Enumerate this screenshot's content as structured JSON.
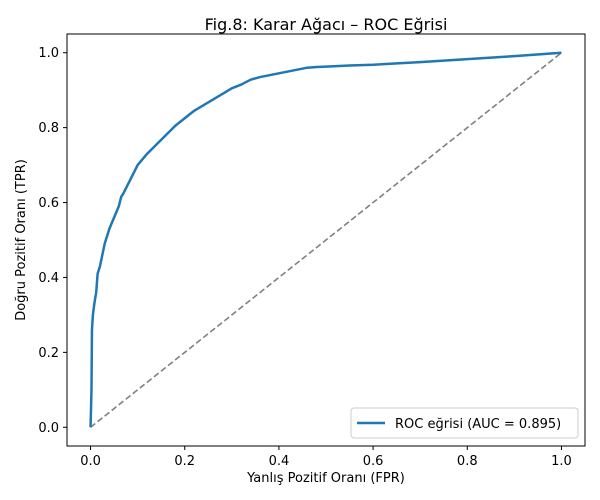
{
  "chart_data": {
    "type": "line",
    "title": "Fig.8: Karar Ağacı – ROC Eğrisi",
    "xlabel": "Yanlış Pozitif Oranı (FPR)",
    "ylabel": "Doğru Pozitif Oranı (TPR)",
    "xlim": [
      -0.05,
      1.05
    ],
    "ylim": [
      -0.05,
      1.05
    ],
    "x_ticks": [
      "0.0",
      "0.2",
      "0.4",
      "0.6",
      "0.8",
      "1.0"
    ],
    "y_ticks": [
      "0.0",
      "0.2",
      "0.4",
      "0.6",
      "0.8",
      "1.0"
    ],
    "grid": false,
    "legend_position": "lower-right",
    "series": [
      {
        "name": "ROC eğrisi (AUC = 0.895)",
        "color": "#1f77b4",
        "style": "solid",
        "x": [
          0.0,
          0.002,
          0.003,
          0.005,
          0.008,
          0.012,
          0.015,
          0.02,
          0.025,
          0.03,
          0.035,
          0.04,
          0.05,
          0.06,
          0.065,
          0.07,
          0.08,
          0.09,
          0.1,
          0.12,
          0.14,
          0.16,
          0.18,
          0.2,
          0.22,
          0.24,
          0.26,
          0.28,
          0.3,
          0.32,
          0.34,
          0.36,
          0.38,
          0.4,
          0.42,
          0.44,
          0.46,
          0.48,
          0.5,
          0.55,
          0.6,
          0.7,
          0.8,
          0.9,
          1.0
        ],
        "y": [
          0.0,
          0.1,
          0.26,
          0.3,
          0.33,
          0.36,
          0.41,
          0.43,
          0.46,
          0.49,
          0.51,
          0.53,
          0.56,
          0.59,
          0.615,
          0.625,
          0.65,
          0.675,
          0.7,
          0.73,
          0.755,
          0.78,
          0.805,
          0.825,
          0.845,
          0.86,
          0.875,
          0.89,
          0.905,
          0.915,
          0.928,
          0.935,
          0.94,
          0.945,
          0.95,
          0.955,
          0.96,
          0.962,
          0.963,
          0.966,
          0.968,
          0.975,
          0.983,
          0.991,
          1.0
        ]
      },
      {
        "name": "",
        "color": "#808080",
        "style": "dashed",
        "x": [
          0.0,
          1.0
        ],
        "y": [
          0.0,
          1.0
        ]
      }
    ]
  }
}
